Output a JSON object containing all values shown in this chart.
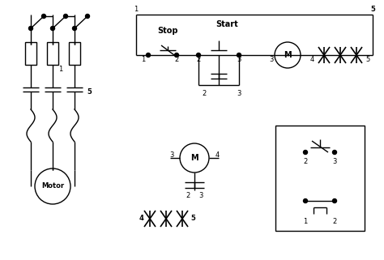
{
  "bg_color": "#ffffff",
  "line_color": "#000000",
  "figsize": [
    4.74,
    3.21
  ],
  "dpi": 100,
  "labels": {
    "stop": "Stop",
    "start": "Start",
    "motor_label": "Motor",
    "M": "M"
  }
}
